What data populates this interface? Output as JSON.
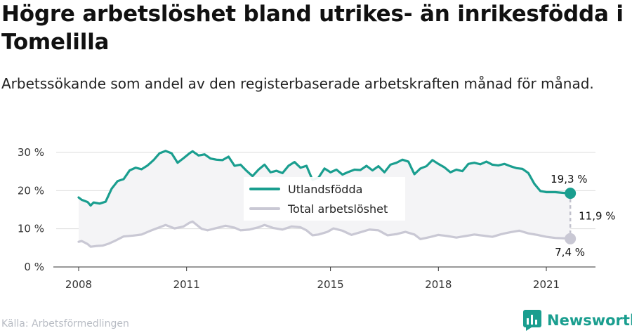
{
  "title": "Högre arbetslöshet bland utrikes- än inrikesfödda i Tomelilla",
  "subtitle": "Arbetssökande som andel av den registerbaserade arbetskraften månad för månad.",
  "source": "Källa: Arbetsförmedlingen",
  "brand": "Newsworthy",
  "colors": {
    "foreign": "#1a9e8f",
    "total": "#c9c8d4",
    "band": "#f4f4f6",
    "grid": "#dddddd",
    "brand": "#1a9e8f"
  },
  "chart_data": {
    "type": "line",
    "x_start": "2008-01",
    "x_end": "2022-03",
    "x_ticks": [
      {
        "year": 2008,
        "label": "2008"
      },
      {
        "year": 2011,
        "label": "2011"
      },
      {
        "year": 2015,
        "label": "2015"
      },
      {
        "year": 2018,
        "label": "2018"
      },
      {
        "year": 2021,
        "label": "2021"
      }
    ],
    "y_ticks": [
      {
        "value": 0,
        "label": "0 %"
      },
      {
        "value": 10,
        "label": "10 %"
      },
      {
        "value": 20,
        "label": "20 %"
      },
      {
        "value": 30,
        "label": "30 %"
      }
    ],
    "ylim": [
      0,
      30
    ],
    "grid": true,
    "legend_position": "center",
    "series": [
      {
        "name": "Utlandsfödda",
        "key": "foreign",
        "anchors": [
          [
            "2008-01",
            18.2
          ],
          [
            "2008-02",
            17.6
          ],
          [
            "2008-04",
            17.0
          ],
          [
            "2008-05",
            16.1
          ],
          [
            "2008-06",
            16.9
          ],
          [
            "2008-08",
            16.6
          ],
          [
            "2008-10",
            17.1
          ],
          [
            "2008-12",
            20.5
          ],
          [
            "2009-02",
            22.5
          ],
          [
            "2009-04",
            23.0
          ],
          [
            "2009-06",
            25.3
          ],
          [
            "2009-08",
            26.0
          ],
          [
            "2009-10",
            25.6
          ],
          [
            "2009-12",
            26.6
          ],
          [
            "2010-02",
            28.0
          ],
          [
            "2010-04",
            29.8
          ],
          [
            "2010-06",
            30.4
          ],
          [
            "2010-08",
            29.8
          ],
          [
            "2010-10",
            27.3
          ],
          [
            "2010-12",
            28.5
          ],
          [
            "2011-02",
            29.8
          ],
          [
            "2011-03",
            30.3
          ],
          [
            "2011-05",
            29.2
          ],
          [
            "2011-07",
            29.5
          ],
          [
            "2011-09",
            28.4
          ],
          [
            "2011-11",
            28.1
          ],
          [
            "2012-01",
            28.0
          ],
          [
            "2012-03",
            28.9
          ],
          [
            "2012-05",
            26.5
          ],
          [
            "2012-07",
            26.8
          ],
          [
            "2012-09",
            25.2
          ],
          [
            "2012-11",
            23.8
          ],
          [
            "2013-01",
            25.5
          ],
          [
            "2013-03",
            26.8
          ],
          [
            "2013-05",
            24.8
          ],
          [
            "2013-07",
            25.2
          ],
          [
            "2013-09",
            24.6
          ],
          [
            "2013-11",
            26.5
          ],
          [
            "2014-01",
            27.5
          ],
          [
            "2014-03",
            26.0
          ],
          [
            "2014-05",
            26.5
          ],
          [
            "2014-07",
            22.8
          ],
          [
            "2014-09",
            23.4
          ],
          [
            "2014-11",
            25.8
          ],
          [
            "2015-01",
            24.8
          ],
          [
            "2015-03",
            25.5
          ],
          [
            "2015-05",
            24.2
          ],
          [
            "2015-07",
            24.9
          ],
          [
            "2015-09",
            25.5
          ],
          [
            "2015-11",
            25.4
          ],
          [
            "2016-01",
            26.5
          ],
          [
            "2016-03",
            25.3
          ],
          [
            "2016-05",
            26.4
          ],
          [
            "2016-07",
            24.8
          ],
          [
            "2016-09",
            26.8
          ],
          [
            "2016-11",
            27.3
          ],
          [
            "2017-01",
            28.1
          ],
          [
            "2017-03",
            27.6
          ],
          [
            "2017-05",
            24.3
          ],
          [
            "2017-07",
            25.8
          ],
          [
            "2017-09",
            26.4
          ],
          [
            "2017-11",
            28.0
          ],
          [
            "2018-01",
            27.0
          ],
          [
            "2018-03",
            26.1
          ],
          [
            "2018-05",
            24.8
          ],
          [
            "2018-07",
            25.5
          ],
          [
            "2018-09",
            25.1
          ],
          [
            "2018-11",
            27.0
          ],
          [
            "2019-01",
            27.3
          ],
          [
            "2019-03",
            26.9
          ],
          [
            "2019-05",
            27.6
          ],
          [
            "2019-07",
            26.8
          ],
          [
            "2019-09",
            26.6
          ],
          [
            "2019-11",
            27.0
          ],
          [
            "2020-01",
            26.4
          ],
          [
            "2020-03",
            25.9
          ],
          [
            "2020-05",
            25.7
          ],
          [
            "2020-07",
            24.6
          ],
          [
            "2020-09",
            21.8
          ],
          [
            "2020-11",
            19.9
          ],
          [
            "2021-01",
            19.6
          ],
          [
            "2021-04",
            19.6
          ],
          [
            "2021-07",
            19.4
          ],
          [
            "2021-09",
            19.3
          ]
        ],
        "end_label": "19,3 %"
      },
      {
        "name": "Total arbetslöshet",
        "key": "total",
        "anchors": [
          [
            "2008-01",
            6.6
          ],
          [
            "2008-02",
            6.8
          ],
          [
            "2008-04",
            6.0
          ],
          [
            "2008-05",
            5.3
          ],
          [
            "2008-07",
            5.5
          ],
          [
            "2008-09",
            5.6
          ],
          [
            "2008-11",
            6.1
          ],
          [
            "2009-01",
            6.8
          ],
          [
            "2009-04",
            8.0
          ],
          [
            "2009-07",
            8.2
          ],
          [
            "2009-10",
            8.5
          ],
          [
            "2010-01",
            9.5
          ],
          [
            "2010-04",
            10.4
          ],
          [
            "2010-06",
            11.0
          ],
          [
            "2010-09",
            10.1
          ],
          [
            "2010-12",
            10.6
          ],
          [
            "2011-02",
            11.6
          ],
          [
            "2011-03",
            11.9
          ],
          [
            "2011-06",
            10.0
          ],
          [
            "2011-08",
            9.6
          ],
          [
            "2011-11",
            10.2
          ],
          [
            "2012-02",
            10.8
          ],
          [
            "2012-05",
            10.3
          ],
          [
            "2012-07",
            9.6
          ],
          [
            "2012-10",
            9.8
          ],
          [
            "2013-01",
            10.4
          ],
          [
            "2013-03",
            11.0
          ],
          [
            "2013-06",
            10.2
          ],
          [
            "2013-09",
            9.8
          ],
          [
            "2013-12",
            10.6
          ],
          [
            "2014-03",
            10.4
          ],
          [
            "2014-05",
            9.6
          ],
          [
            "2014-07",
            8.3
          ],
          [
            "2014-09",
            8.5
          ],
          [
            "2014-12",
            9.2
          ],
          [
            "2015-02",
            10.1
          ],
          [
            "2015-05",
            9.5
          ],
          [
            "2015-08",
            8.4
          ],
          [
            "2015-11",
            9.1
          ],
          [
            "2016-02",
            9.8
          ],
          [
            "2016-05",
            9.6
          ],
          [
            "2016-08",
            8.3
          ],
          [
            "2016-11",
            8.6
          ],
          [
            "2017-02",
            9.2
          ],
          [
            "2017-05",
            8.5
          ],
          [
            "2017-07",
            7.3
          ],
          [
            "2017-10",
            7.8
          ],
          [
            "2018-01",
            8.4
          ],
          [
            "2018-04",
            8.1
          ],
          [
            "2018-07",
            7.7
          ],
          [
            "2018-10",
            8.1
          ],
          [
            "2019-01",
            8.5
          ],
          [
            "2019-04",
            8.2
          ],
          [
            "2019-07",
            7.9
          ],
          [
            "2019-10",
            8.6
          ],
          [
            "2020-01",
            9.1
          ],
          [
            "2020-04",
            9.5
          ],
          [
            "2020-07",
            8.8
          ],
          [
            "2020-10",
            8.4
          ],
          [
            "2021-01",
            7.9
          ],
          [
            "2021-04",
            7.6
          ],
          [
            "2021-07",
            7.5
          ],
          [
            "2021-09",
            7.4
          ]
        ],
        "end_label": "7,4 %"
      }
    ],
    "gap_label": "11,9 %"
  }
}
